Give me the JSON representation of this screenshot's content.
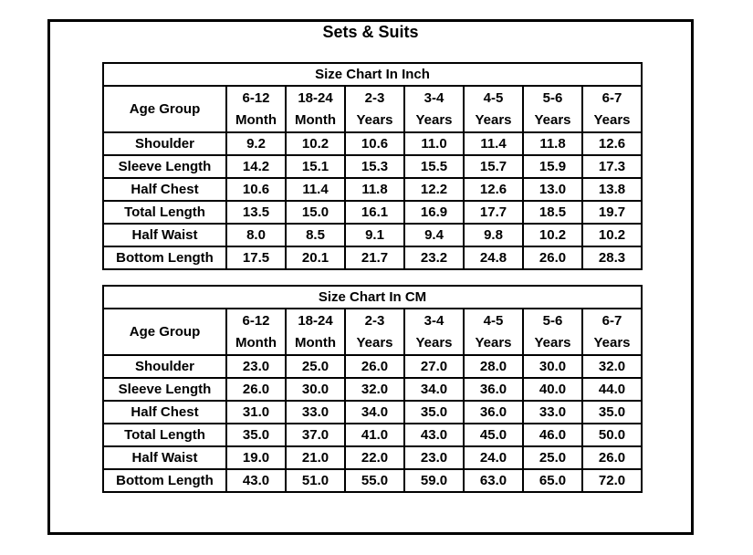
{
  "document": {
    "title": "Sets & Suits"
  },
  "colors": {
    "border": "#000000",
    "text": "#000000",
    "background": "#ffffff"
  },
  "tables": [
    {
      "title": "Size Chart In Inch",
      "corner_header": "Age Group",
      "age_columns": [
        [
          "6-12",
          "Month"
        ],
        [
          "18-24",
          "Month"
        ],
        [
          "2-3",
          "Years"
        ],
        [
          "3-4",
          "Years"
        ],
        [
          "4-5",
          "Years"
        ],
        [
          "5-6",
          "Years"
        ],
        [
          "6-7",
          "Years"
        ]
      ],
      "rows": [
        {
          "label": "Shoulder",
          "values": [
            "9.2",
            "10.2",
            "10.6",
            "11.0",
            "11.4",
            "11.8",
            "12.6"
          ]
        },
        {
          "label": "Sleeve Length",
          "values": [
            "14.2",
            "15.1",
            "15.3",
            "15.5",
            "15.7",
            "15.9",
            "17.3"
          ]
        },
        {
          "label": "Half Chest",
          "values": [
            "10.6",
            "11.4",
            "11.8",
            "12.2",
            "12.6",
            "13.0",
            "13.8"
          ]
        },
        {
          "label": "Total Length",
          "values": [
            "13.5",
            "15.0",
            "16.1",
            "16.9",
            "17.7",
            "18.5",
            "19.7"
          ]
        },
        {
          "label": "Half Waist",
          "values": [
            "8.0",
            "8.5",
            "9.1",
            "9.4",
            "9.8",
            "10.2",
            "10.2"
          ]
        },
        {
          "label": "Bottom Length",
          "values": [
            "17.5",
            "20.1",
            "21.7",
            "23.2",
            "24.8",
            "26.0",
            "28.3"
          ]
        }
      ]
    },
    {
      "title": "Size Chart In CM",
      "corner_header": "Age Group",
      "age_columns": [
        [
          "6-12",
          "Month"
        ],
        [
          "18-24",
          "Month"
        ],
        [
          "2-3",
          "Years"
        ],
        [
          "3-4",
          "Years"
        ],
        [
          "4-5",
          "Years"
        ],
        [
          "5-6",
          "Years"
        ],
        [
          "6-7",
          "Years"
        ]
      ],
      "rows": [
        {
          "label": "Shoulder",
          "values": [
            "23.0",
            "25.0",
            "26.0",
            "27.0",
            "28.0",
            "30.0",
            "32.0"
          ]
        },
        {
          "label": "Sleeve Length",
          "values": [
            "26.0",
            "30.0",
            "32.0",
            "34.0",
            "36.0",
            "40.0",
            "44.0"
          ]
        },
        {
          "label": "Half Chest",
          "values": [
            "31.0",
            "33.0",
            "34.0",
            "35.0",
            "36.0",
            "33.0",
            "35.0"
          ]
        },
        {
          "label": "Total Length",
          "values": [
            "35.0",
            "37.0",
            "41.0",
            "43.0",
            "45.0",
            "46.0",
            "50.0"
          ]
        },
        {
          "label": "Half Waist",
          "values": [
            "19.0",
            "21.0",
            "22.0",
            "23.0",
            "24.0",
            "25.0",
            "26.0"
          ]
        },
        {
          "label": "Bottom Length",
          "values": [
            "43.0",
            "51.0",
            "55.0",
            "59.0",
            "63.0",
            "65.0",
            "72.0"
          ]
        }
      ]
    }
  ]
}
